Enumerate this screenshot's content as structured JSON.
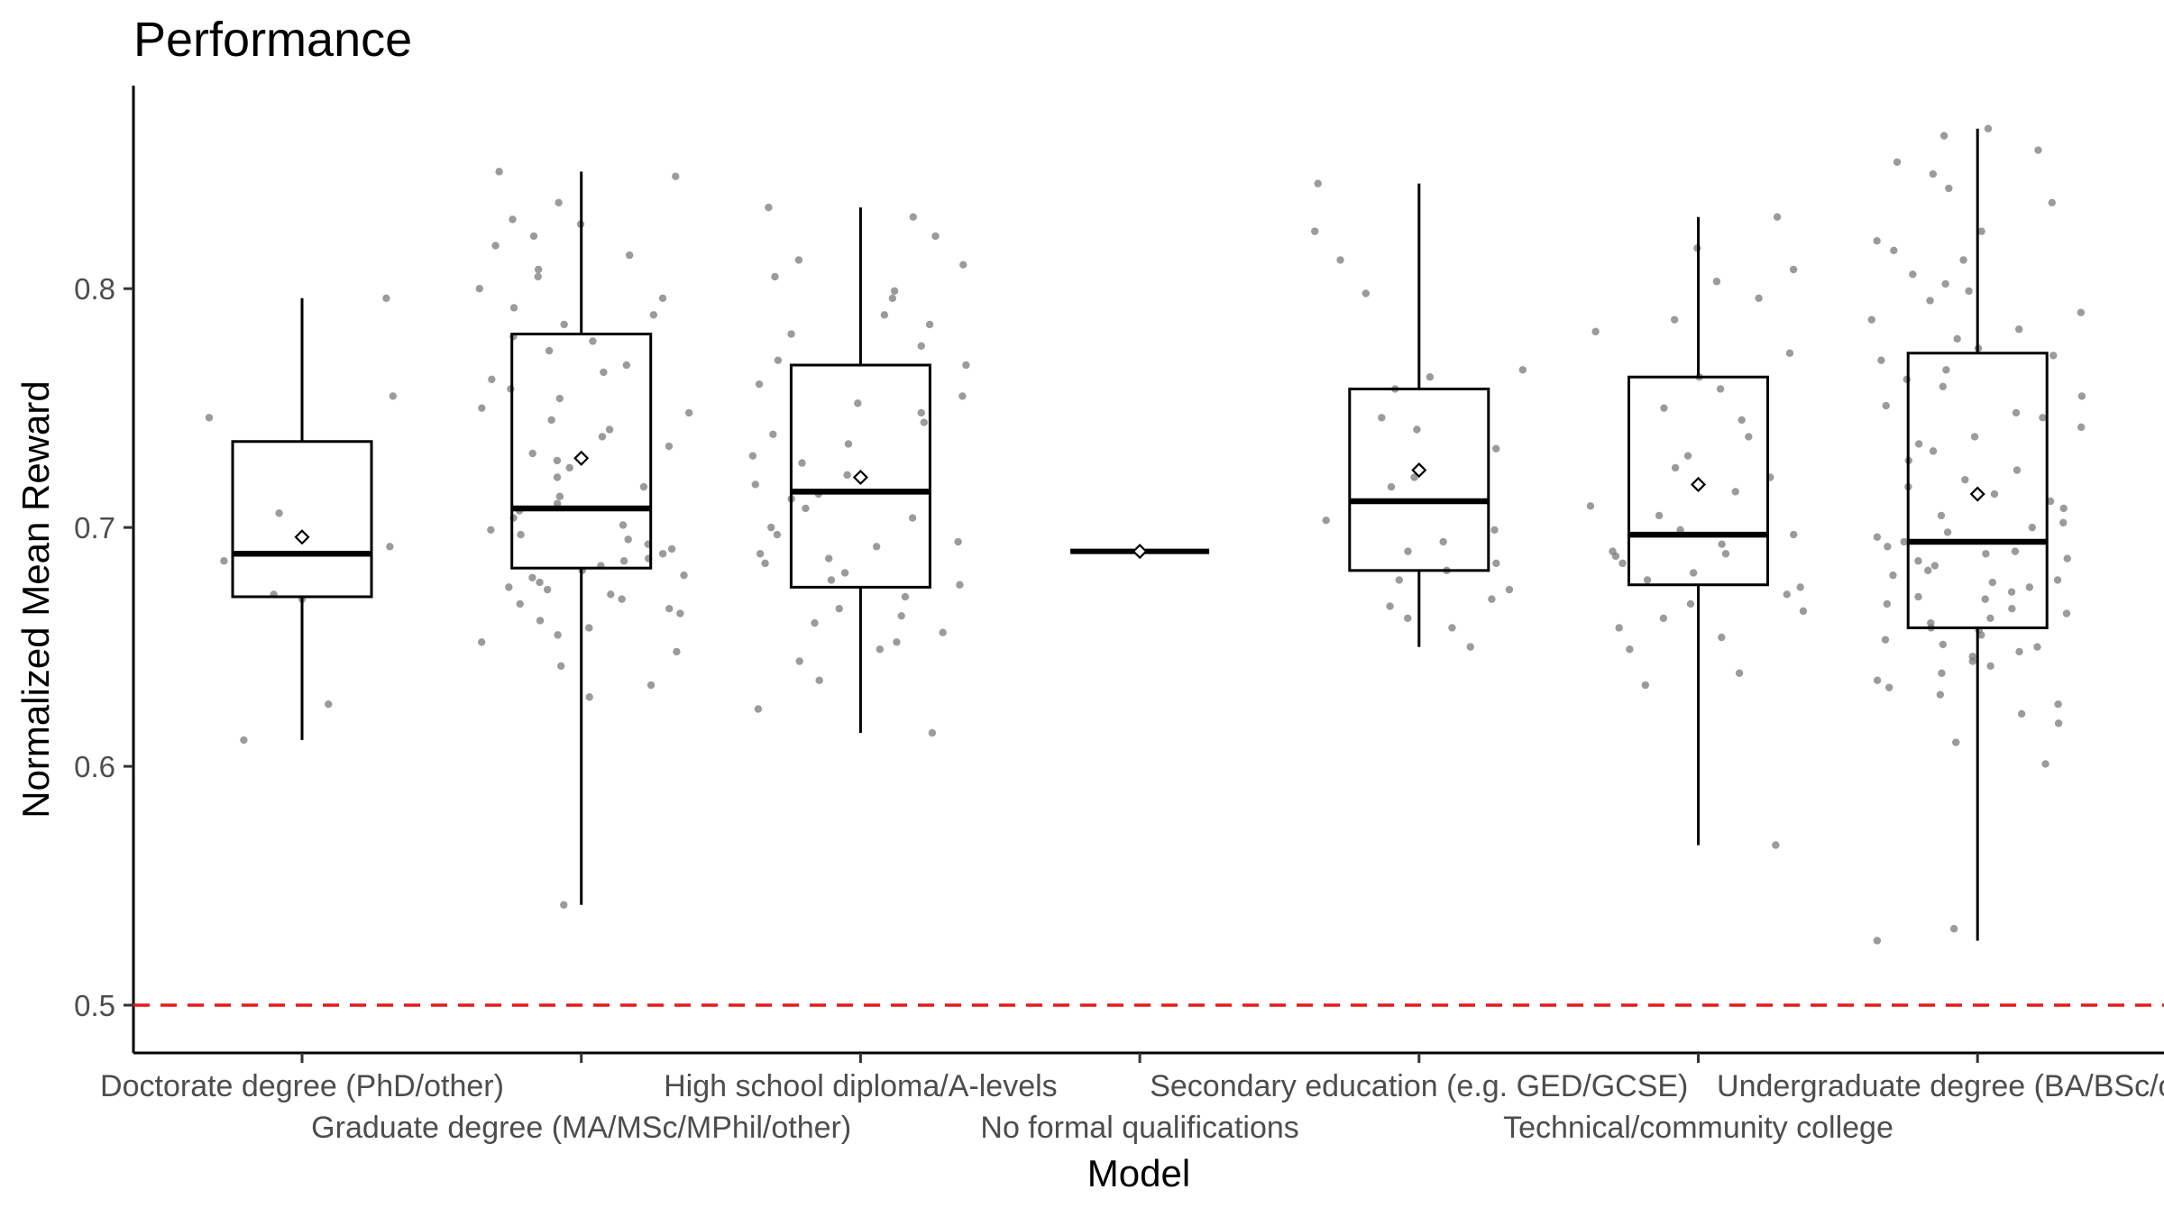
{
  "chart_data": {
    "type": "box",
    "title": "Performance",
    "xlabel": "Model",
    "ylabel": "Normalized Mean Reward",
    "ylim": [
      0.48,
      0.885
    ],
    "yticks": [
      0.5,
      0.6,
      0.7,
      0.8
    ],
    "reference_line": {
      "y": 0.5,
      "color": "#e41a1c",
      "style": "dashed"
    },
    "grid": false,
    "categories": [
      "Doctorate degree (PhD/other)",
      "Graduate degree (MA/MSc/MPhil/other)",
      "High school diploma/A-levels",
      "No formal qualifications",
      "Secondary education (e.g. GED/GCSE)",
      "Technical/community college",
      "Undergraduate degree (BA/BSc/other)"
    ],
    "boxes": [
      {
        "min": 0.611,
        "q1": 0.671,
        "median": 0.689,
        "q3": 0.736,
        "max": 0.796,
        "mean": 0.696
      },
      {
        "min": 0.542,
        "q1": 0.683,
        "median": 0.708,
        "q3": 0.781,
        "max": 0.849,
        "mean": 0.729
      },
      {
        "min": 0.614,
        "q1": 0.675,
        "median": 0.715,
        "q3": 0.768,
        "max": 0.834,
        "mean": 0.721
      },
      {
        "min": 0.69,
        "q1": 0.69,
        "median": 0.69,
        "q3": 0.69,
        "max": 0.69,
        "mean": 0.69
      },
      {
        "min": 0.65,
        "q1": 0.682,
        "median": 0.711,
        "q3": 0.758,
        "max": 0.844,
        "mean": 0.724
      },
      {
        "min": 0.567,
        "q1": 0.676,
        "median": 0.697,
        "q3": 0.763,
        "max": 0.83,
        "mean": 0.718
      },
      {
        "min": 0.527,
        "q1": 0.658,
        "median": 0.694,
        "q3": 0.773,
        "max": 0.867,
        "mean": 0.714
      }
    ],
    "points": [
      [
        0.796,
        0.755,
        0.746,
        0.706,
        0.692,
        0.686,
        0.672,
        0.67,
        0.626,
        0.611
      ],
      [
        0.849,
        0.847,
        0.836,
        0.829,
        0.827,
        0.822,
        0.818,
        0.814,
        0.808,
        0.805,
        0.8,
        0.796,
        0.792,
        0.789,
        0.785,
        0.78,
        0.778,
        0.774,
        0.768,
        0.765,
        0.762,
        0.758,
        0.754,
        0.75,
        0.748,
        0.745,
        0.741,
        0.738,
        0.734,
        0.731,
        0.728,
        0.725,
        0.721,
        0.717,
        0.713,
        0.71,
        0.707,
        0.704,
        0.701,
        0.699,
        0.697,
        0.695,
        0.693,
        0.691,
        0.689,
        0.687,
        0.686,
        0.684,
        0.682,
        0.68,
        0.679,
        0.677,
        0.675,
        0.674,
        0.672,
        0.67,
        0.668,
        0.666,
        0.664,
        0.661,
        0.658,
        0.655,
        0.652,
        0.648,
        0.642,
        0.634,
        0.629,
        0.542
      ],
      [
        0.834,
        0.83,
        0.822,
        0.812,
        0.81,
        0.805,
        0.799,
        0.796,
        0.789,
        0.785,
        0.781,
        0.776,
        0.77,
        0.768,
        0.76,
        0.755,
        0.752,
        0.748,
        0.744,
        0.739,
        0.735,
        0.73,
        0.727,
        0.722,
        0.718,
        0.714,
        0.712,
        0.708,
        0.704,
        0.7,
        0.697,
        0.694,
        0.692,
        0.689,
        0.687,
        0.685,
        0.681,
        0.678,
        0.676,
        0.671,
        0.666,
        0.663,
        0.66,
        0.656,
        0.652,
        0.649,
        0.644,
        0.636,
        0.624,
        0.614
      ],
      [
        0.69
      ],
      [
        0.844,
        0.824,
        0.812,
        0.798,
        0.766,
        0.763,
        0.758,
        0.746,
        0.741,
        0.733,
        0.721,
        0.717,
        0.703,
        0.699,
        0.694,
        0.69,
        0.685,
        0.682,
        0.678,
        0.674,
        0.67,
        0.667,
        0.662,
        0.658,
        0.65
      ],
      [
        0.83,
        0.817,
        0.808,
        0.803,
        0.796,
        0.787,
        0.782,
        0.773,
        0.763,
        0.758,
        0.75,
        0.745,
        0.738,
        0.73,
        0.725,
        0.721,
        0.715,
        0.709,
        0.705,
        0.699,
        0.697,
        0.693,
        0.69,
        0.689,
        0.688,
        0.685,
        0.681,
        0.678,
        0.675,
        0.672,
        0.668,
        0.665,
        0.662,
        0.658,
        0.654,
        0.649,
        0.639,
        0.634,
        0.567
      ],
      [
        0.867,
        0.864,
        0.858,
        0.853,
        0.848,
        0.842,
        0.836,
        0.824,
        0.82,
        0.816,
        0.812,
        0.806,
        0.802,
        0.799,
        0.795,
        0.79,
        0.787,
        0.783,
        0.779,
        0.775,
        0.772,
        0.77,
        0.766,
        0.762,
        0.759,
        0.755,
        0.751,
        0.748,
        0.746,
        0.742,
        0.738,
        0.735,
        0.732,
        0.728,
        0.724,
        0.72,
        0.717,
        0.714,
        0.711,
        0.708,
        0.705,
        0.702,
        0.7,
        0.698,
        0.696,
        0.694,
        0.692,
        0.69,
        0.689,
        0.687,
        0.686,
        0.684,
        0.682,
        0.68,
        0.678,
        0.677,
        0.675,
        0.673,
        0.671,
        0.67,
        0.668,
        0.666,
        0.664,
        0.662,
        0.66,
        0.658,
        0.657,
        0.655,
        0.653,
        0.651,
        0.65,
        0.648,
        0.646,
        0.644,
        0.642,
        0.639,
        0.636,
        0.633,
        0.63,
        0.626,
        0.622,
        0.618,
        0.61,
        0.601,
        0.532,
        0.527
      ]
    ]
  }
}
